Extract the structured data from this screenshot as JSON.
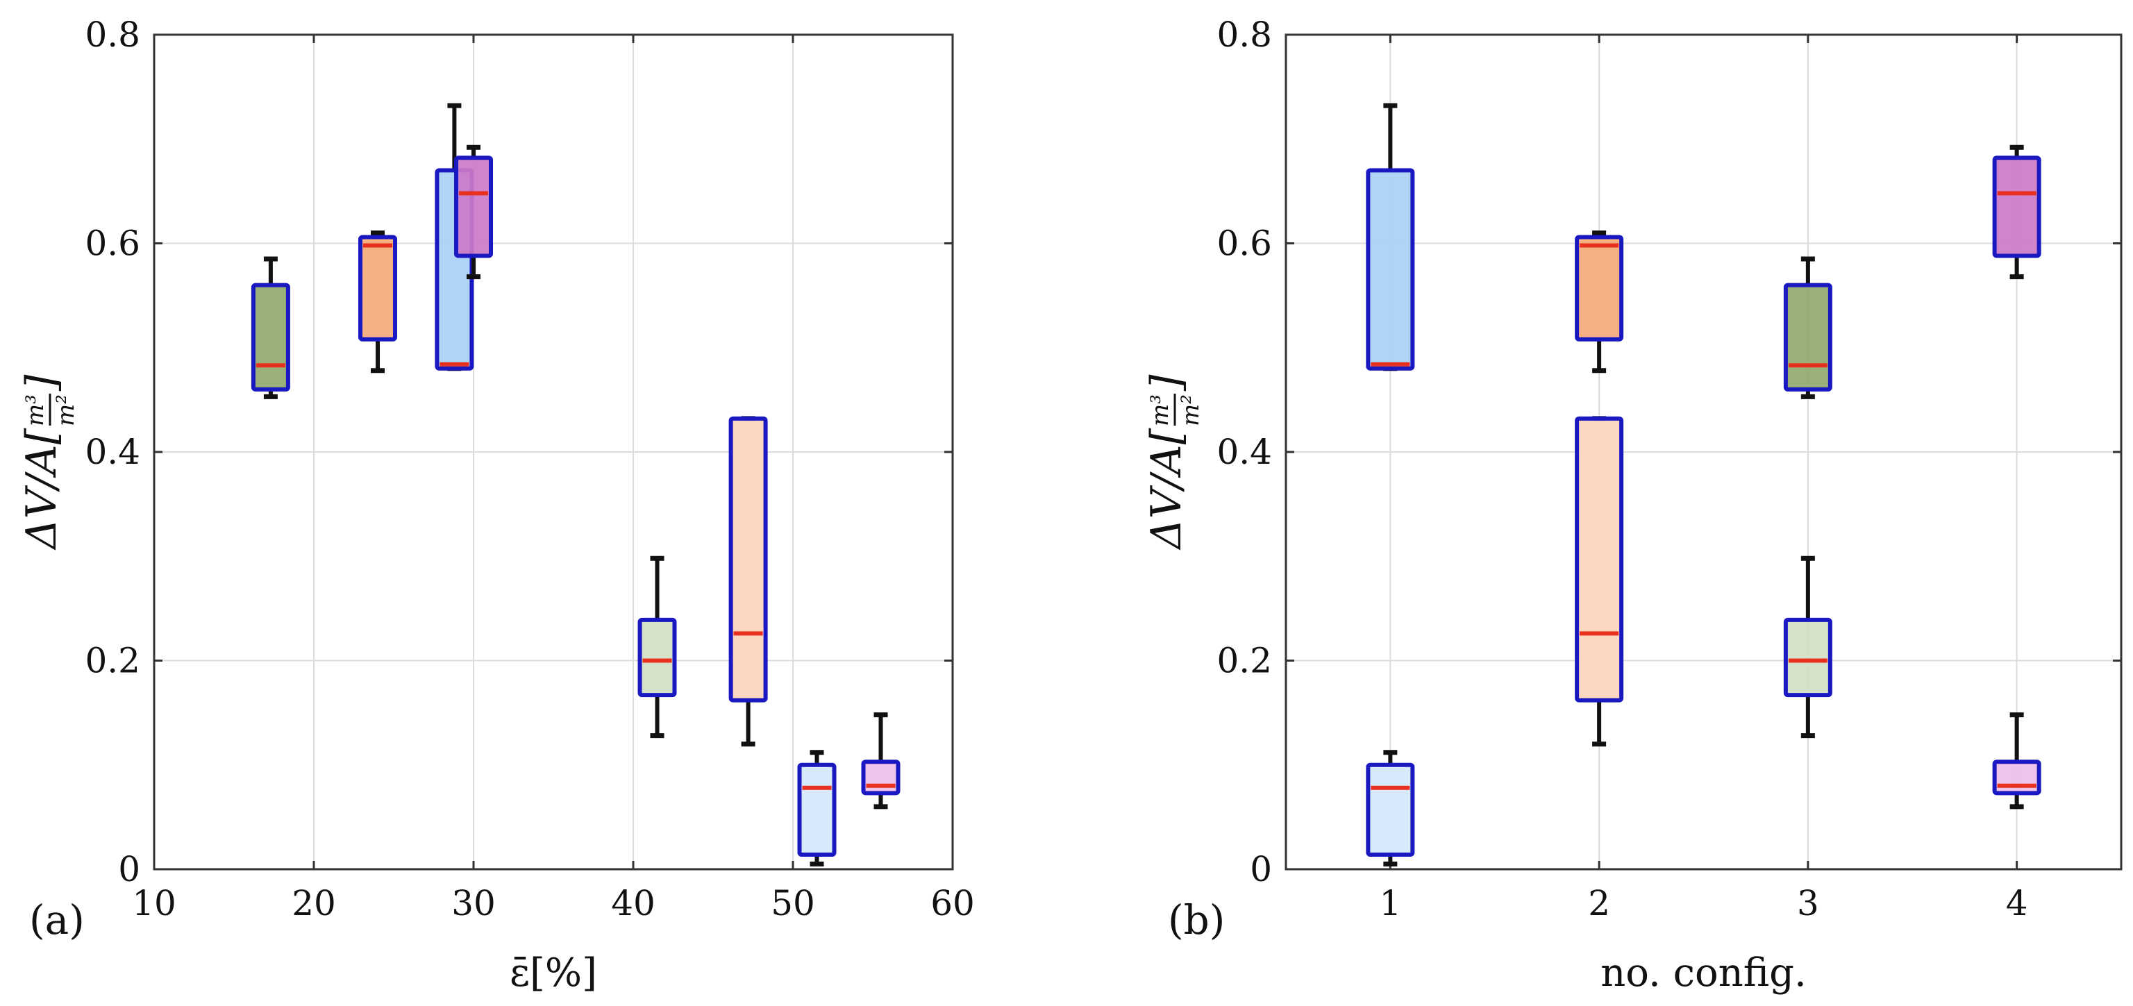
{
  "colors": {
    "box_edge": "#1a18c0",
    "median": "#e8301f",
    "whisker": "#111111",
    "grid": "#dcdcdc",
    "axis": "#333333"
  },
  "chart_data": [
    {
      "type": "box",
      "panel_label": "(a)",
      "xlabel": "ε̄[%]",
      "ylabel": {
        "prefix": "ΔV/A[",
        "numerator": "m³",
        "denominator": "m²",
        "suffix": "]"
      },
      "xlim": [
        10,
        60
      ],
      "ylim": [
        0,
        0.8
      ],
      "xticks": [
        10,
        20,
        30,
        40,
        50,
        60
      ],
      "xtick_labels": [
        "10",
        "20",
        "30",
        "40",
        "50",
        "60"
      ],
      "yticks": [
        0,
        0.2,
        0.4,
        0.6,
        0.8
      ],
      "ytick_labels": [
        "0",
        "0.2",
        "0.4",
        "0.6",
        "0.8"
      ],
      "grid": true,
      "boxes": [
        {
          "x": 17.3,
          "q1": 0.46,
          "median": 0.483,
          "q3": 0.56,
          "whisker_low": 0.453,
          "whisker_high": 0.585,
          "fill": "#93a86c"
        },
        {
          "x": 24.0,
          "q1": 0.508,
          "median": 0.598,
          "q3": 0.606,
          "whisker_low": 0.478,
          "whisker_high": 0.61,
          "fill": "#f4a97a"
        },
        {
          "x": 28.8,
          "q1": 0.48,
          "median": 0.484,
          "q3": 0.67,
          "whisker_low": 0.48,
          "whisker_high": 0.732,
          "fill": "#a9d0f5"
        },
        {
          "x": 30.0,
          "q1": 0.588,
          "median": 0.648,
          "q3": 0.682,
          "whisker_low": 0.568,
          "whisker_high": 0.692,
          "fill": "#cc79c8"
        },
        {
          "x": 41.5,
          "q1": 0.167,
          "median": 0.2,
          "q3": 0.239,
          "whisker_low": 0.128,
          "whisker_high": 0.298,
          "fill": "#d3dec4"
        },
        {
          "x": 47.2,
          "q1": 0.162,
          "median": 0.226,
          "q3": 0.432,
          "whisker_low": 0.12,
          "whisker_high": 0.432,
          "fill": "#fcd4bc"
        },
        {
          "x": 51.5,
          "q1": 0.014,
          "median": 0.078,
          "q3": 0.1,
          "whisker_low": 0.005,
          "whisker_high": 0.112,
          "fill": "#d4e8fb"
        },
        {
          "x": 55.5,
          "q1": 0.073,
          "median": 0.08,
          "q3": 0.103,
          "whisker_low": 0.06,
          "whisker_high": 0.148,
          "fill": "#eebfe8"
        }
      ]
    },
    {
      "type": "box",
      "panel_label": "(b)",
      "xlabel": "no.  config.",
      "ylabel": {
        "prefix": "ΔV/A[",
        "numerator": "m³",
        "denominator": "m²",
        "suffix": "]"
      },
      "xlim": [
        0.5,
        4.5
      ],
      "ylim": [
        0,
        0.8
      ],
      "xticks": [
        1,
        2,
        3,
        4
      ],
      "xtick_labels": [
        "1",
        "2",
        "3",
        "4"
      ],
      "yticks": [
        0,
        0.2,
        0.4,
        0.6,
        0.8
      ],
      "ytick_labels": [
        "0",
        "0.2",
        "0.4",
        "0.6",
        "0.8"
      ],
      "grid": true,
      "boxes": [
        {
          "x": 1,
          "q1": 0.48,
          "median": 0.484,
          "q3": 0.67,
          "whisker_low": 0.48,
          "whisker_high": 0.732,
          "fill": "#a9d0f5"
        },
        {
          "x": 1,
          "q1": 0.014,
          "median": 0.078,
          "q3": 0.1,
          "whisker_low": 0.005,
          "whisker_high": 0.112,
          "fill": "#d4e8fb"
        },
        {
          "x": 2,
          "q1": 0.508,
          "median": 0.598,
          "q3": 0.606,
          "whisker_low": 0.478,
          "whisker_high": 0.61,
          "fill": "#f4a97a"
        },
        {
          "x": 2,
          "q1": 0.162,
          "median": 0.226,
          "q3": 0.432,
          "whisker_low": 0.12,
          "whisker_high": 0.432,
          "fill": "#fcd4bc"
        },
        {
          "x": 3,
          "q1": 0.46,
          "median": 0.483,
          "q3": 0.56,
          "whisker_low": 0.453,
          "whisker_high": 0.585,
          "fill": "#93a86c"
        },
        {
          "x": 3,
          "q1": 0.167,
          "median": 0.2,
          "q3": 0.239,
          "whisker_low": 0.128,
          "whisker_high": 0.298,
          "fill": "#d3dec4"
        },
        {
          "x": 4,
          "q1": 0.588,
          "median": 0.648,
          "q3": 0.682,
          "whisker_low": 0.568,
          "whisker_high": 0.692,
          "fill": "#cc79c8"
        },
        {
          "x": 4,
          "q1": 0.073,
          "median": 0.08,
          "q3": 0.103,
          "whisker_low": 0.06,
          "whisker_high": 0.148,
          "fill": "#eebfe8"
        }
      ]
    }
  ]
}
